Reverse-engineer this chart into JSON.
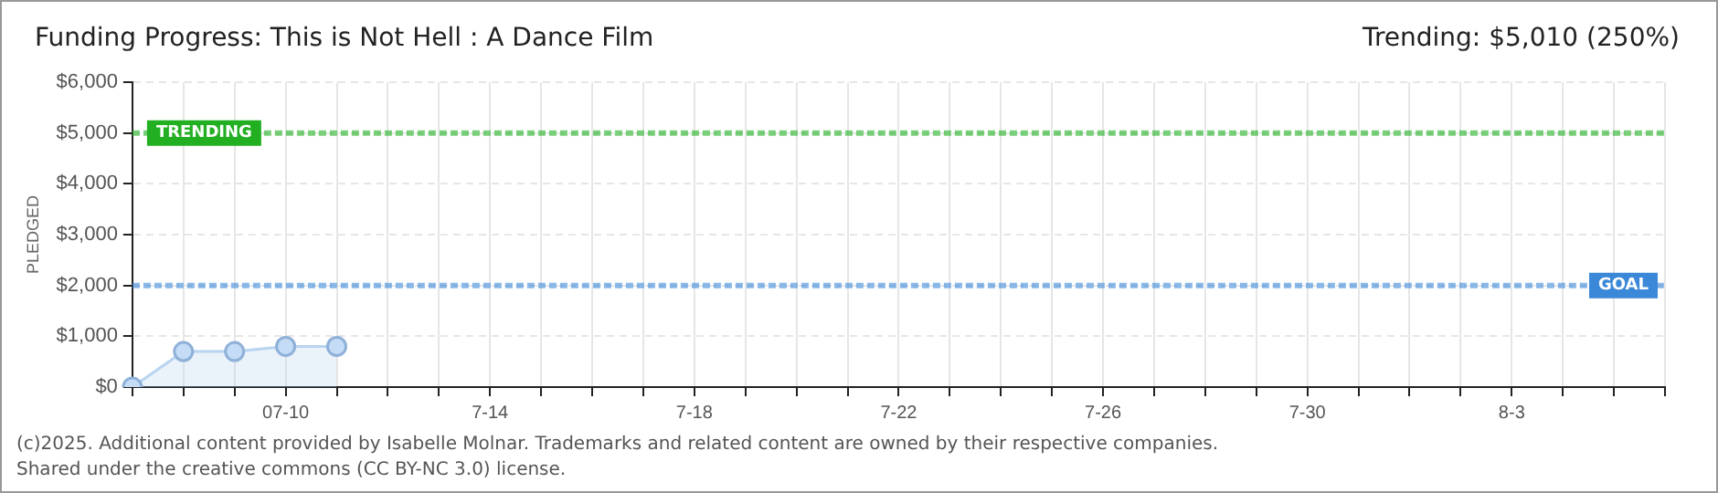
{
  "chart_data": {
    "type": "area",
    "title": "Funding Progress: This is Not Hell : A Dance Film",
    "ylabel": "PLEDGED",
    "annotations": [
      "Trending:  $5,010 (250%)",
      "(c)2025. Additional content provided by Isabelle Molnar. Trademarks and related content are owned by their respective companies.",
      "Shared under the creative commons (CC BY-NC 3.0) license."
    ],
    "categories": [
      null,
      null,
      null,
      "07-10",
      null,
      null,
      null,
      "7-14",
      null,
      null,
      null,
      "7-18",
      null,
      null,
      null,
      "7-22",
      null,
      null,
      null,
      "7-26",
      null,
      null,
      null,
      "7-30",
      null,
      null,
      null,
      "8-3",
      null,
      null,
      null
    ],
    "series": [
      {
        "color": "#b8d4f0",
        "values": [
          0,
          700,
          700,
          800,
          800,
          null,
          null,
          null,
          null,
          null,
          null,
          null,
          null,
          null,
          null,
          null,
          null,
          null,
          null,
          null,
          null,
          null,
          null,
          null,
          null,
          null,
          null,
          null,
          null,
          null,
          null
        ]
      }
    ],
    "ylim": [
      0,
      6000
    ],
    "yticks": [
      {
        "value": 0,
        "label": "$0"
      },
      {
        "value": 1000,
        "label": "$1,000"
      },
      {
        "value": 2000,
        "label": "$2,000"
      },
      {
        "value": 3000,
        "label": "$3,000"
      },
      {
        "value": 4000,
        "label": "$4,000"
      },
      {
        "value": 5000,
        "label": "$5,000"
      },
      {
        "value": 6000,
        "label": "$6,000"
      }
    ],
    "ref_lines": [
      {
        "axis": "y",
        "value": 5000,
        "label": "TRENDING",
        "color": "#22b022",
        "line_style": "dashed"
      },
      {
        "axis": "y",
        "value": 2000,
        "label": "GOAL",
        "color": "#3b88d8",
        "line_style": "dashed"
      }
    ],
    "grid": true,
    "legend": false,
    "marker": "circle",
    "line_style": "solid"
  }
}
